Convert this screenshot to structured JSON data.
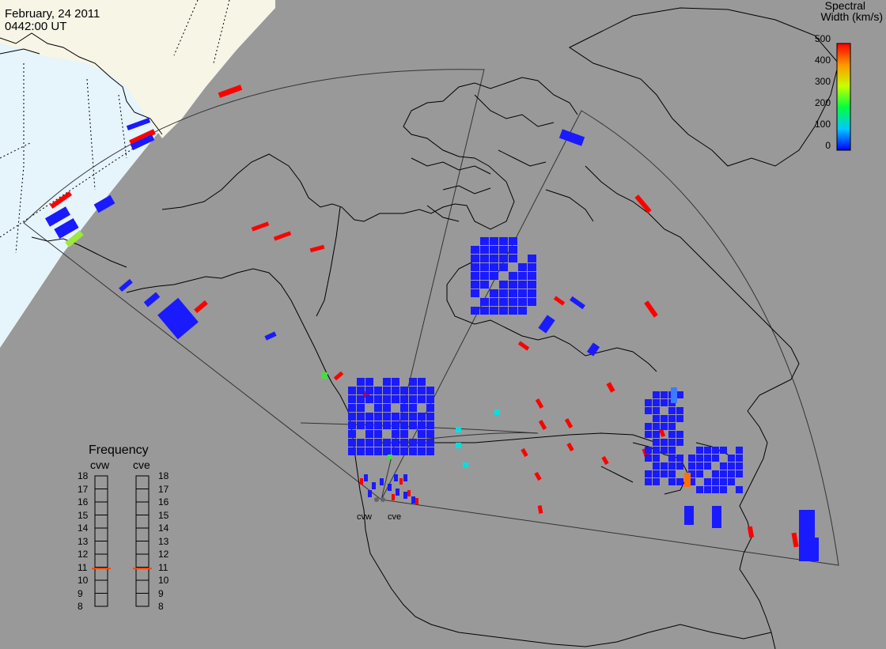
{
  "header": {
    "date": "February, 24 2011",
    "time": "0442:00 UT"
  },
  "colorbar": {
    "title_line1": "Spectral",
    "title_line2": "Width (km/s)",
    "ticks": [
      "500",
      "400",
      "300",
      "200",
      "100",
      "0"
    ],
    "range": [
      0,
      500
    ],
    "colors": [
      "#0000ff",
      "#00c8ff",
      "#00ff40",
      "#c8ff00",
      "#ff9600",
      "#ff0000"
    ]
  },
  "frequency_panel": {
    "title": "Frequency",
    "columns": [
      "cvw",
      "cve"
    ],
    "ticks": [
      "18",
      "17",
      "16",
      "15",
      "14",
      "13",
      "12",
      "11",
      "10",
      "9",
      "8"
    ],
    "cvw_mhz": 10.9,
    "cve_mhz": 10.9,
    "marker_color": "#ff4500"
  },
  "radars": [
    "cvw",
    "cve"
  ],
  "colors": {
    "map_background": "#999999",
    "land_outline": "#000000",
    "night_ocean": "#e6f4fc",
    "day_land": "#f6f5e6",
    "red": "#ff0000",
    "blue": "#1a1aff",
    "cyan": "#00e0e0",
    "green": "#40e040",
    "orange": "#ff7000",
    "light_blue": "#3a7cff",
    "yellow_green": "#9ee640"
  }
}
